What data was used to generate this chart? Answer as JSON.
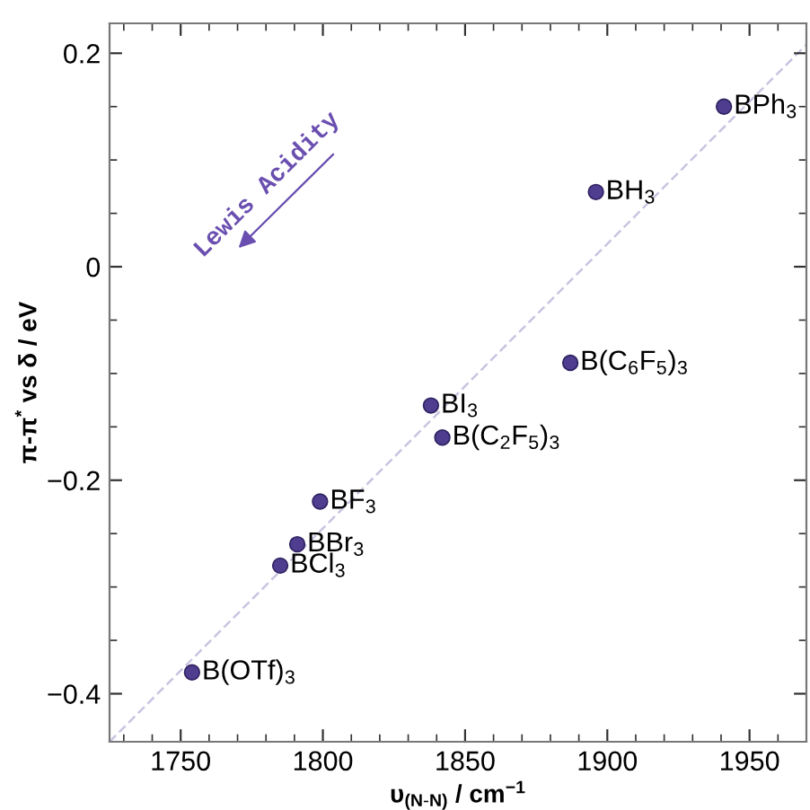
{
  "chart_data": {
    "type": "scatter",
    "xlabel": "υ$_{(N-N)}$ / cm$^{−1}$",
    "ylabel": "π-π$^{*}$ vs δ / eV",
    "xlim": [
      1725,
      1970
    ],
    "ylim": [
      -0.445,
      0.228
    ],
    "xticks": [
      1750,
      1800,
      1850,
      1900,
      1950
    ],
    "yticks": [
      {
        "value": -0.4,
        "label": "−0.4"
      },
      {
        "value": -0.2,
        "label": "−0.2"
      },
      0,
      0.2
    ],
    "grid": false,
    "legend": false,
    "series": [
      {
        "type": "line",
        "marker": "none",
        "color": "#c8c4e2",
        "line_style": "dashed",
        "x": [
          1725,
          1970
        ],
        "values": [
          -0.445,
          0.208
        ]
      },
      {
        "color": "#4f3d8f",
        "marker": "circle",
        "x": [
          1941,
          1896,
          1887,
          1838,
          1842,
          1799,
          1791,
          1785,
          1754
        ],
        "values": [
          0.15,
          0.07,
          -0.09,
          -0.13,
          -0.16,
          -0.22,
          -0.26,
          -0.28,
          -0.38
        ]
      }
    ],
    "annotations": [
      {
        "text": "BPh$_{3}$",
        "x": 1941,
        "y": 0.15
      },
      {
        "text": "BH$_{3}$",
        "x": 1896,
        "y": 0.07
      },
      {
        "text": "B(C$_{6}$F$_{5}$)$_{3}$",
        "x": 1887,
        "y": -0.09
      },
      {
        "text": "BI$_{3}$",
        "x": 1838,
        "y": -0.13
      },
      {
        "text": "B(C$_{2}$F$_{5}$)$_{3}$",
        "x": 1842,
        "y": -0.16
      },
      {
        "text": "BF$_{3}$",
        "x": 1799,
        "y": -0.22
      },
      {
        "text": "BBr$_{3}$",
        "x": 1791,
        "y": -0.26
      },
      {
        "text": "BCl$_{3}$",
        "x": 1785,
        "y": -0.28
      },
      {
        "text": "B(OTf)$_{3}$",
        "x": 1754,
        "y": -0.38
      },
      "Lewis Acidity"
    ]
  }
}
